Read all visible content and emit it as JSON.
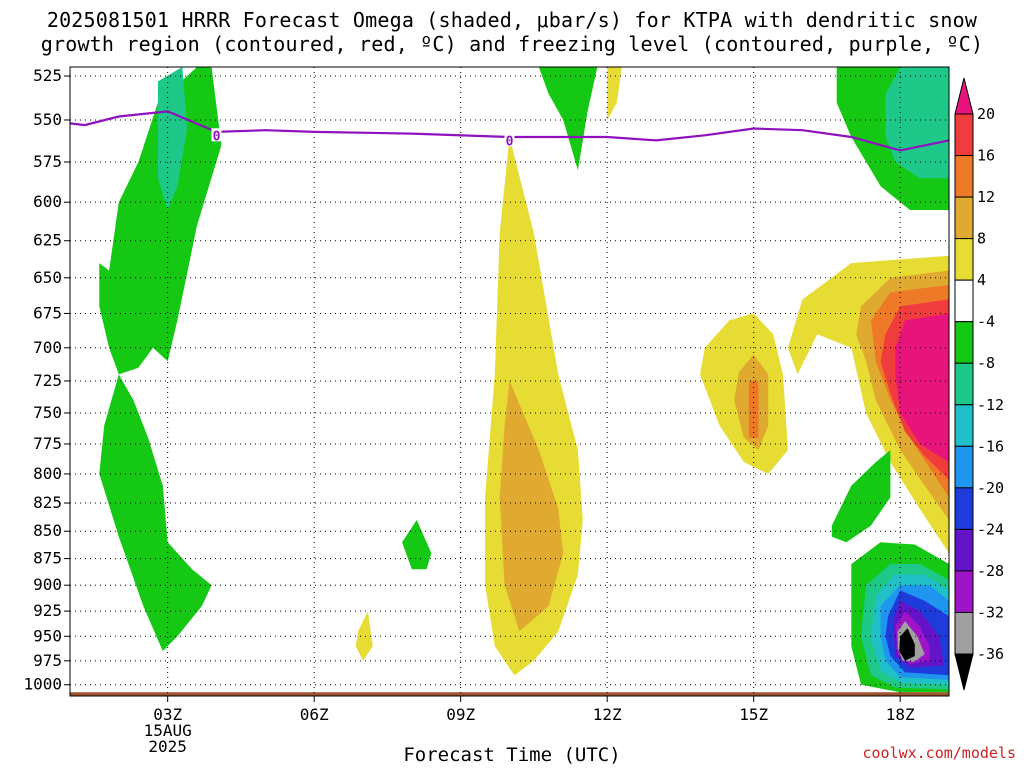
{
  "title": {
    "line1": "2025081501 HRRR Forecast Omega (shaded, μbar/s) for KTPA with dendritic snow",
    "line2": "growth region (contoured, red, ºC) and freezing level (contoured, purple, ºC)"
  },
  "xlabel": "Forecast Time (UTC)",
  "credit": "coolwx.com/models",
  "chart_data": {
    "type": "heatmap",
    "title": "2025081501 HRRR Forecast Omega (shaded, μbar/s) for KTPA with dendritic snow growth region (contoured, red, ºC) and freezing level (contoured, purple, ºC)",
    "xlabel": "Forecast Time (UTC)",
    "ylabel": "",
    "x_hours": [
      1,
      19
    ],
    "x_ticks": [
      {
        "hour": 3,
        "label": "03Z",
        "sub1": "15AUG",
        "sub2": "2025"
      },
      {
        "hour": 6,
        "label": "06Z"
      },
      {
        "hour": 9,
        "label": "09Z"
      },
      {
        "hour": 12,
        "label": "12Z"
      },
      {
        "hour": 15,
        "label": "15Z"
      },
      {
        "hour": 18,
        "label": "18Z"
      }
    ],
    "y_levels_hpa": [
      525,
      550,
      575,
      600,
      625,
      650,
      675,
      700,
      725,
      750,
      775,
      800,
      825,
      850,
      875,
      900,
      925,
      950,
      975,
      1000
    ],
    "y_range": [
      520,
      1012
    ],
    "y_scale": "log",
    "grid": true,
    "colorbar": {
      "labels": [
        "20",
        "16",
        "12",
        "8",
        "4",
        "-4",
        "-8",
        "-12",
        "-16",
        "-20",
        "-24",
        "-28",
        "-32",
        "-36"
      ],
      "colors": [
        "#e8147c",
        "#f03c3c",
        "#ee7a28",
        "#e0aa30",
        "#e6dc34",
        "#ffffff",
        "#14c814",
        "#1ec888",
        "#20c0c8",
        "#1e96f0",
        "#1e3cdc",
        "#6414c8",
        "#a014c8",
        "#a0a0a0",
        "#000000"
      ]
    },
    "freezing_level": {
      "color": "#9010c0",
      "label": "0",
      "points": [
        [
          1.0,
          552
        ],
        [
          1.3,
          553
        ],
        [
          2.0,
          548
        ],
        [
          3.0,
          545
        ],
        [
          4.0,
          557
        ],
        [
          5.0,
          556
        ],
        [
          6.0,
          557
        ],
        [
          8.0,
          558
        ],
        [
          10.0,
          560
        ],
        [
          12.0,
          560
        ],
        [
          13.0,
          562
        ],
        [
          14.0,
          559
        ],
        [
          15.0,
          555
        ],
        [
          16.0,
          556
        ],
        [
          17.0,
          560
        ],
        [
          18.0,
          568
        ],
        [
          19.0,
          562
        ]
      ],
      "label_points": [
        [
          4.0,
          559
        ],
        [
          10.0,
          562
        ]
      ]
    },
    "shading": [
      {
        "name": "green-column-left",
        "color": "#14c814",
        "points": [
          [
            1.8,
            645
          ],
          [
            2.0,
            600
          ],
          [
            2.4,
            575
          ],
          [
            2.8,
            540
          ],
          [
            3.6,
            520
          ],
          [
            3.9,
            520
          ],
          [
            4.1,
            565
          ],
          [
            3.6,
            615
          ],
          [
            3.2,
            680
          ],
          [
            3.0,
            710
          ],
          [
            2.7,
            700
          ],
          [
            2.4,
            715
          ],
          [
            2.0,
            720
          ],
          [
            2.3,
            740
          ],
          [
            2.6,
            770
          ],
          [
            2.9,
            810
          ],
          [
            3.0,
            860
          ],
          [
            3.5,
            885
          ],
          [
            3.9,
            900
          ],
          [
            3.7,
            920
          ],
          [
            3.2,
            950
          ],
          [
            2.9,
            965
          ],
          [
            2.5,
            920
          ],
          [
            2.0,
            855
          ],
          [
            1.6,
            800
          ],
          [
            1.7,
            760
          ],
          [
            2.0,
            720
          ],
          [
            1.8,
            700
          ],
          [
            1.6,
            670
          ],
          [
            1.6,
            640
          ]
        ]
      },
      {
        "name": "green-top-right",
        "color": "#14c814",
        "points": [
          [
            16.7,
            520
          ],
          [
            19.0,
            520
          ],
          [
            19.0,
            605
          ],
          [
            18.2,
            605
          ],
          [
            17.6,
            590
          ],
          [
            17.0,
            560
          ],
          [
            16.7,
            540
          ]
        ]
      },
      {
        "name": "aqua-left-core",
        "color": "#1ec888",
        "points": [
          [
            2.8,
            528
          ],
          [
            3.3,
            520
          ],
          [
            3.4,
            555
          ],
          [
            3.2,
            590
          ],
          [
            3.0,
            605
          ],
          [
            2.8,
            585
          ],
          [
            2.8,
            555
          ]
        ]
      },
      {
        "name": "aqua-top-right",
        "color": "#1ec888",
        "points": [
          [
            17.7,
            560
          ],
          [
            17.7,
            535
          ],
          [
            18.0,
            520
          ],
          [
            19.0,
            520
          ],
          [
            19.0,
            585
          ],
          [
            18.4,
            585
          ],
          [
            17.9,
            575
          ]
        ]
      },
      {
        "name": "green-top-mid",
        "color": "#14c814",
        "points": [
          [
            10.6,
            520
          ],
          [
            11.8,
            520
          ],
          [
            11.6,
            545
          ],
          [
            11.4,
            580
          ],
          [
            11.1,
            550
          ],
          [
            10.8,
            535
          ]
        ]
      },
      {
        "name": "yellow-top-mid",
        "color": "#e6dc34",
        "points": [
          [
            12.0,
            520
          ],
          [
            12.3,
            520
          ],
          [
            12.2,
            540
          ],
          [
            12.0,
            550
          ]
        ]
      },
      {
        "name": "yellow-column-mid",
        "color": "#e6dc34",
        "points": [
          [
            10.0,
            560
          ],
          [
            10.5,
            620
          ],
          [
            11.0,
            720
          ],
          [
            11.4,
            780
          ],
          [
            11.5,
            840
          ],
          [
            11.4,
            890
          ],
          [
            11.0,
            945
          ],
          [
            10.5,
            975
          ],
          [
            10.1,
            990
          ],
          [
            9.7,
            960
          ],
          [
            9.5,
            900
          ],
          [
            9.5,
            820
          ],
          [
            9.7,
            720
          ],
          [
            9.8,
            620
          ]
        ]
      },
      {
        "name": "orange-column-mid",
        "color": "#e0aa30",
        "points": [
          [
            10.0,
            725
          ],
          [
            10.6,
            780
          ],
          [
            11.0,
            830
          ],
          [
            11.1,
            870
          ],
          [
            10.8,
            920
          ],
          [
            10.2,
            945
          ],
          [
            9.9,
            900
          ],
          [
            9.8,
            820
          ],
          [
            9.9,
            760
          ]
        ]
      },
      {
        "name": "yellow-blob-right",
        "color": "#e6dc34",
        "points": [
          [
            14.0,
            700
          ],
          [
            14.5,
            680
          ],
          [
            15.0,
            675
          ],
          [
            15.4,
            690
          ],
          [
            15.6,
            720
          ],
          [
            15.7,
            780
          ],
          [
            15.3,
            800
          ],
          [
            14.8,
            790
          ],
          [
            14.3,
            760
          ],
          [
            13.9,
            720
          ]
        ]
      },
      {
        "name": "orange-blob-right",
        "color": "#e0aa30",
        "points": [
          [
            14.7,
            718
          ],
          [
            15.0,
            705
          ],
          [
            15.3,
            720
          ],
          [
            15.3,
            760
          ],
          [
            15.1,
            780
          ],
          [
            14.8,
            770
          ],
          [
            14.6,
            740
          ]
        ]
      },
      {
        "name": "darkorange-blob-right",
        "color": "#ee7a28",
        "points": [
          [
            14.9,
            725
          ],
          [
            15.1,
            725
          ],
          [
            15.1,
            770
          ],
          [
            14.9,
            770
          ]
        ]
      },
      {
        "name": "yellow-right-edge",
        "color": "#e6dc34",
        "points": [
          [
            16.4,
            655
          ],
          [
            17.0,
            640
          ],
          [
            19.0,
            635
          ],
          [
            19.0,
            870
          ],
          [
            18.4,
            830
          ],
          [
            17.8,
            790
          ],
          [
            17.3,
            750
          ],
          [
            17.0,
            700
          ],
          [
            16.3,
            690
          ],
          [
            15.9,
            720
          ],
          [
            15.7,
            700
          ],
          [
            16.0,
            665
          ]
        ]
      },
      {
        "name": "orange-right-edge",
        "color": "#e0aa30",
        "points": [
          [
            17.2,
            670
          ],
          [
            17.8,
            650
          ],
          [
            19.0,
            645
          ],
          [
            19.0,
            840
          ],
          [
            18.5,
            810
          ],
          [
            18.0,
            780
          ],
          [
            17.5,
            740
          ],
          [
            17.3,
            710
          ],
          [
            17.1,
            690
          ]
        ]
      },
      {
        "name": "darkorange-right-edge",
        "color": "#ee7a28",
        "points": [
          [
            17.4,
            680
          ],
          [
            17.8,
            660
          ],
          [
            19.0,
            655
          ],
          [
            19.0,
            820
          ],
          [
            18.6,
            795
          ],
          [
            18.2,
            770
          ],
          [
            17.8,
            740
          ],
          [
            17.5,
            710
          ]
        ]
      },
      {
        "name": "red-right-edge",
        "color": "#f03c3c",
        "points": [
          [
            17.7,
            690
          ],
          [
            18.0,
            670
          ],
          [
            19.0,
            665
          ],
          [
            19.0,
            805
          ],
          [
            18.5,
            785
          ],
          [
            18.1,
            765
          ],
          [
            17.8,
            735
          ],
          [
            17.6,
            710
          ]
        ]
      },
      {
        "name": "magenta-right-edge",
        "color": "#e8147c",
        "points": [
          [
            17.9,
            700
          ],
          [
            18.1,
            680
          ],
          [
            19.0,
            675
          ],
          [
            19.0,
            790
          ],
          [
            18.4,
            775
          ],
          [
            18.0,
            750
          ],
          [
            17.9,
            720
          ]
        ]
      },
      {
        "name": "green-mid-right",
        "color": "#14c814",
        "points": [
          [
            16.6,
            845
          ],
          [
            17.0,
            810
          ],
          [
            17.5,
            790
          ],
          [
            17.8,
            780
          ],
          [
            17.8,
            820
          ],
          [
            17.4,
            845
          ],
          [
            16.9,
            860
          ],
          [
            16.6,
            855
          ]
        ]
      },
      {
        "name": "green-small-mid",
        "color": "#14c814",
        "points": [
          [
            7.8,
            860
          ],
          [
            8.1,
            840
          ],
          [
            8.4,
            870
          ],
          [
            8.3,
            885
          ],
          [
            8.0,
            885
          ]
        ]
      },
      {
        "name": "yellow-small-lower",
        "color": "#e6dc34",
        "points": [
          [
            6.9,
            945
          ],
          [
            7.1,
            925
          ],
          [
            7.2,
            960
          ],
          [
            7.0,
            975
          ],
          [
            6.85,
            960
          ]
        ]
      },
      {
        "name": "green-lower-right",
        "color": "#14c814",
        "points": [
          [
            17.0,
            880
          ],
          [
            17.6,
            860
          ],
          [
            18.3,
            862
          ],
          [
            19.0,
            880
          ],
          [
            19.0,
            1008
          ],
          [
            18.0,
            1008
          ],
          [
            17.2,
            1000
          ],
          [
            17.0,
            960
          ]
        ]
      },
      {
        "name": "aqua-lower-right",
        "color": "#1ec888",
        "points": [
          [
            17.3,
            900
          ],
          [
            17.8,
            880
          ],
          [
            18.4,
            880
          ],
          [
            19.0,
            895
          ],
          [
            19.0,
            1005
          ],
          [
            17.9,
            1003
          ],
          [
            17.4,
            990
          ],
          [
            17.2,
            950
          ]
        ]
      },
      {
        "name": "cyan-lower-right",
        "color": "#20c0c8",
        "points": [
          [
            17.5,
            910
          ],
          [
            17.9,
            890
          ],
          [
            18.5,
            890
          ],
          [
            19.0,
            905
          ],
          [
            19.0,
            1000
          ],
          [
            18.0,
            998
          ],
          [
            17.6,
            985
          ],
          [
            17.4,
            950
          ]
        ]
      },
      {
        "name": "blue-lower-right",
        "color": "#1e96f0",
        "points": [
          [
            17.6,
            920
          ],
          [
            18.0,
            900
          ],
          [
            18.6,
            900
          ],
          [
            19.0,
            915
          ],
          [
            19.0,
            995
          ],
          [
            18.0,
            992
          ],
          [
            17.7,
            975
          ],
          [
            17.6,
            950
          ]
        ]
      },
      {
        "name": "darkblue-lower-right",
        "color": "#1e3cdc",
        "points": [
          [
            17.75,
            930
          ],
          [
            18.0,
            905
          ],
          [
            18.5,
            915
          ],
          [
            19.0,
            930
          ],
          [
            19.0,
            990
          ],
          [
            18.1,
            987
          ],
          [
            17.8,
            970
          ],
          [
            17.7,
            950
          ]
        ]
      },
      {
        "name": "purple-lower-right",
        "color": "#6414c8",
        "points": [
          [
            17.85,
            935
          ],
          [
            18.0,
            915
          ],
          [
            18.4,
            925
          ],
          [
            18.8,
            950
          ],
          [
            18.9,
            980
          ],
          [
            18.2,
            982
          ],
          [
            17.9,
            970
          ]
        ]
      },
      {
        "name": "violet-lower-right",
        "color": "#a014c8",
        "points": [
          [
            17.9,
            940
          ],
          [
            18.1,
            925
          ],
          [
            18.4,
            940
          ],
          [
            18.6,
            960
          ],
          [
            18.6,
            975
          ],
          [
            18.2,
            978
          ],
          [
            17.95,
            968
          ]
        ]
      },
      {
        "name": "gray-lower-right",
        "color": "#a0a0a0",
        "points": [
          [
            17.95,
            945
          ],
          [
            18.1,
            935
          ],
          [
            18.35,
            950
          ],
          [
            18.5,
            968
          ],
          [
            18.3,
            976
          ],
          [
            18.05,
            975
          ],
          [
            17.95,
            962
          ]
        ]
      },
      {
        "name": "black-lower-right",
        "color": "#000000",
        "points": [
          [
            18.0,
            950
          ],
          [
            18.15,
            942
          ],
          [
            18.3,
            958
          ],
          [
            18.3,
            970
          ],
          [
            18.1,
            975
          ],
          [
            17.98,
            965
          ]
        ]
      }
    ],
    "ground": {
      "color": "#a0522d",
      "level_hpa": 1008
    }
  }
}
